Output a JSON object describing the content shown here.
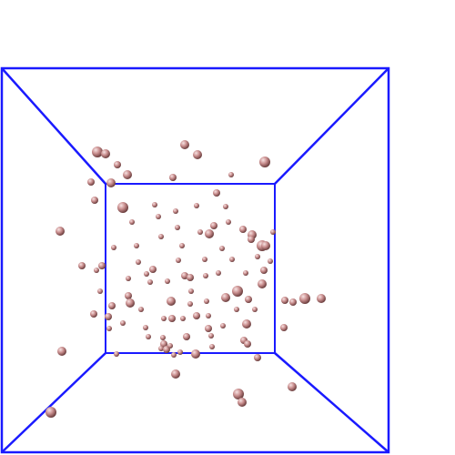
{
  "scene": {
    "type": "3d-particle-simulation-box-view",
    "colors": {
      "background": "#ffffff",
      "box_edges": "#1a1aff",
      "particle_highlight": "#f7e3e3",
      "particle_base": "#c98e8e",
      "particle_shadow": "#5a2f2f"
    },
    "particle_count": 112
  }
}
